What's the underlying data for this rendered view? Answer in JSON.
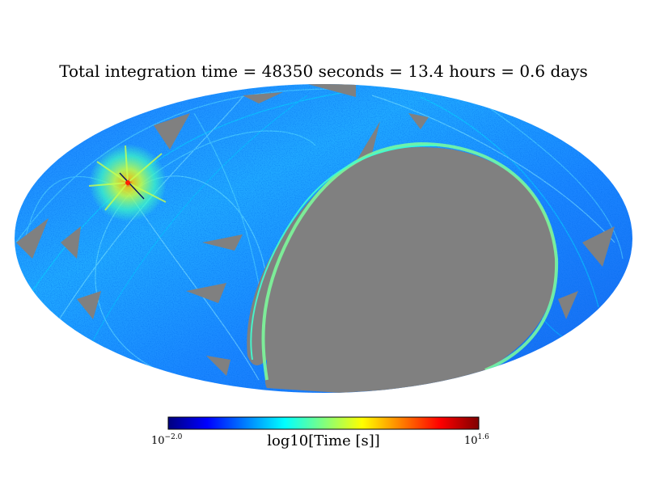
{
  "chart_data": {
    "type": "heatmap",
    "projection": "mollweide",
    "title": "Total integration time = 48350 seconds = 13.4 hours = 0.6 days",
    "colorbar": {
      "label": "log10[Time [s]]",
      "min_base": "10",
      "min_exp": "−2.0",
      "max_base": "10",
      "max_exp": "1.6",
      "vmin": -2.0,
      "vmax": 1.6,
      "colormap": "jet",
      "placement": "bottom"
    },
    "no_data_color": "#808080",
    "background_color": "#ffffff"
  }
}
